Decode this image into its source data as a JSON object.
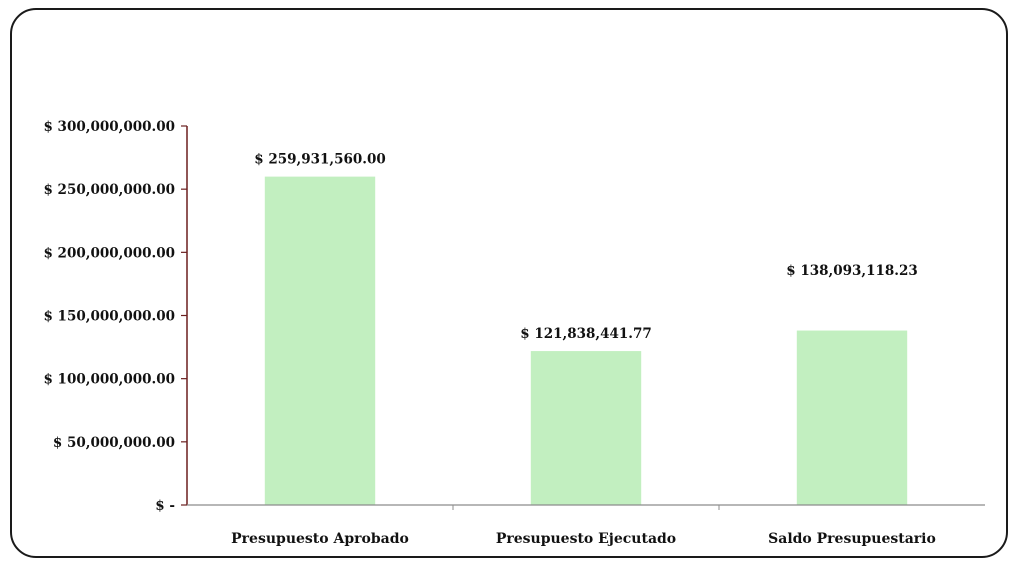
{
  "chart_data": {
    "type": "bar",
    "title": "",
    "xlabel": "",
    "ylabel": "",
    "categories": [
      "Presupuesto Aprobado",
      "Presupuesto Ejecutado",
      "Saldo Presupuestario"
    ],
    "values": [
      259931560.0,
      121838441.77,
      138093118.23
    ],
    "data_labels": [
      "$ 259,931,560.00",
      "$ 121,838,441.77",
      "$ 138,093,118.23"
    ],
    "ylim": [
      0,
      300000000
    ],
    "y_ticks": [
      0,
      50000000,
      100000000,
      150000000,
      200000000,
      250000000,
      300000000
    ],
    "y_tick_labels": [
      "$ -",
      "$ 50,000,000.00",
      "$ 100,000,000.00",
      "$ 150,000,000.00",
      "$ 200,000,000.00",
      "$ 250,000,000.00",
      "$ 300,000,000.00"
    ],
    "grid": false,
    "legend": "none",
    "bar_color": "#c2efc0",
    "axis_color": "#6b1f1f"
  }
}
